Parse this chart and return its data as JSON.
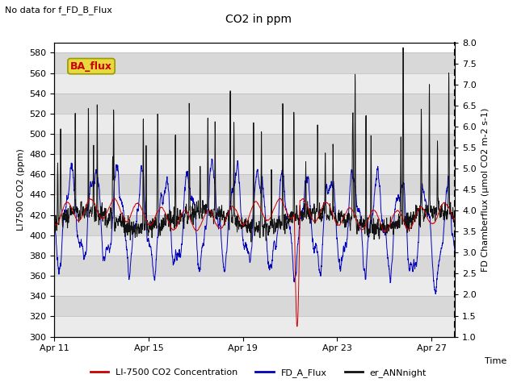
{
  "title": "CO2 in ppm",
  "top_left_text": "No data for f_FD_B_Flux",
  "ba_flux_label": "BA_flux",
  "xlabel": "Time",
  "ylabel_left": "LI7500 CO2 (ppm)",
  "ylabel_right": "FD Chamberflux (μmol CO2 m-2 s-1)",
  "ylim_left": [
    300,
    590
  ],
  "ylim_right": [
    1.0,
    8.0
  ],
  "yticks_left": [
    300,
    320,
    340,
    360,
    380,
    400,
    420,
    440,
    460,
    480,
    500,
    520,
    540,
    560,
    580
  ],
  "yticks_right": [
    1.0,
    1.5,
    2.0,
    2.5,
    3.0,
    3.5,
    4.0,
    4.5,
    5.0,
    5.5,
    6.0,
    6.5,
    7.0,
    7.5,
    8.0
  ],
  "xtick_labels": [
    "Apr 11",
    "Apr 15",
    "Apr 19",
    "Apr 23",
    "Apr 27"
  ],
  "xtick_positions": [
    0,
    4,
    8,
    12,
    16
  ],
  "xlim": [
    0,
    17
  ],
  "colors": {
    "red": "#cc0000",
    "blue": "#0000bb",
    "black": "#111111",
    "ba_flux_bg": "#e8d840",
    "ba_flux_border": "#999900",
    "ba_flux_text": "#cc0000",
    "grid_dark": "#bbbbbb",
    "plot_bg_dark": "#d8d8d8",
    "plot_bg_light": "#ebebeb"
  },
  "legend_entries": [
    "LI-7500 CO2 Concentration",
    "FD_A_Flux",
    "er_ANNnight"
  ],
  "seed": 42,
  "n_points_per_day": 144,
  "n_days": 17
}
